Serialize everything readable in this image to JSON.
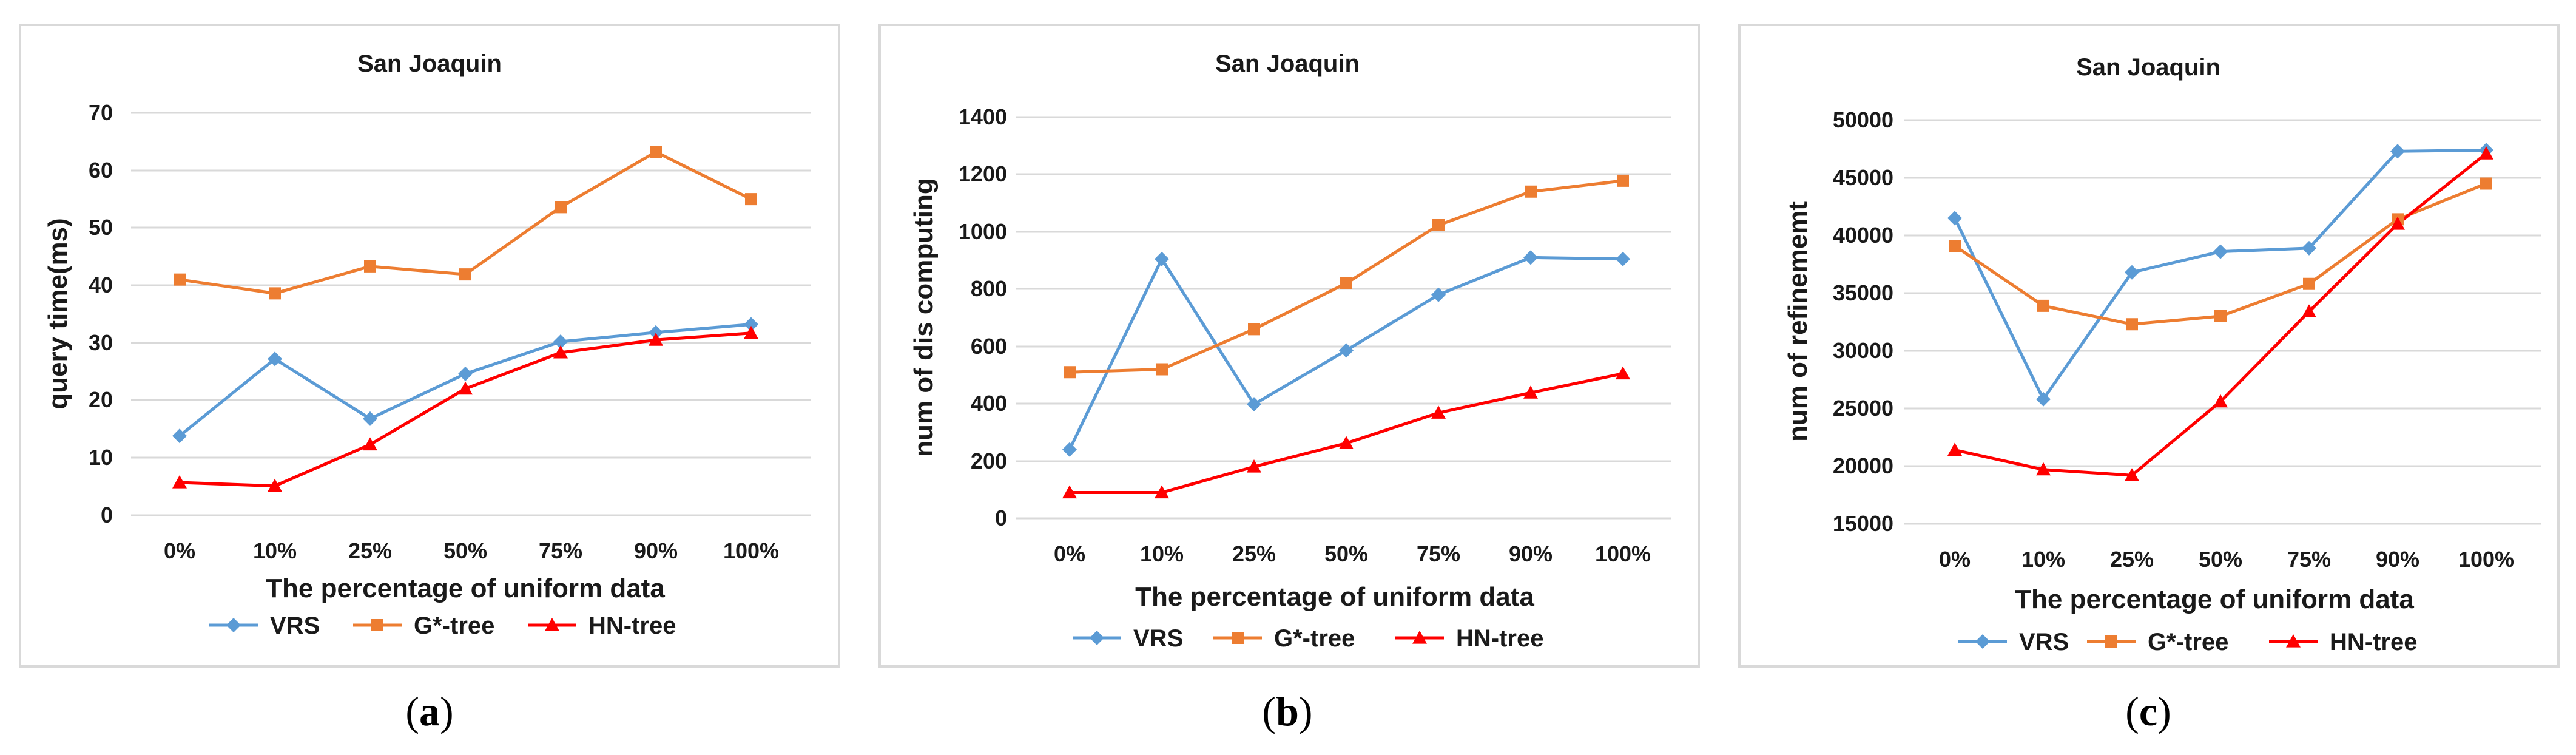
{
  "colors": {
    "VRS": "#5b9bd5",
    "G*-tree": "#ed7d31",
    "HN-tree": "#ff0000"
  },
  "chart_data": [
    {
      "type": "line",
      "caption_open": "(",
      "caption_letter": "a",
      "caption_close": ")",
      "title": "San Joaquin",
      "xlabel": "The percentage of uniform data",
      "ylabel": "query time(ms)",
      "categories": [
        "0%",
        "10%",
        "25%",
        "50%",
        "75%",
        "90%",
        "100%"
      ],
      "ylim": [
        0,
        70
      ],
      "ytick_step": 10,
      "ytick_labels": [
        "0",
        "10",
        "20",
        "30",
        "40",
        "50",
        "60",
        "70"
      ],
      "series": [
        {
          "name": "VRS",
          "marker": "diamond",
          "values": [
            13.8,
            27.2,
            16.8,
            24.6,
            30.2,
            31.8,
            33.2
          ]
        },
        {
          "name": "G*-tree",
          "marker": "square",
          "values": [
            41.0,
            38.6,
            43.3,
            41.9,
            53.6,
            63.2,
            55.0
          ]
        },
        {
          "name": "HN-tree",
          "marker": "triangle",
          "values": [
            5.7,
            5.1,
            12.3,
            22.0,
            28.3,
            30.5,
            31.7
          ]
        }
      ]
    },
    {
      "type": "line",
      "caption_open": "(",
      "caption_letter": "b",
      "caption_close": ")",
      "title": "San Joaquin",
      "xlabel": "The percentage of uniform data",
      "ylabel": "num of dis computing",
      "categories": [
        "0%",
        "10%",
        "25%",
        "50%",
        "75%",
        "90%",
        "100%"
      ],
      "ylim": [
        0,
        1400
      ],
      "ytick_step": 200,
      "ytick_labels": [
        "0",
        "200",
        "400",
        "600",
        "800",
        "1000",
        "1200",
        "1400"
      ],
      "series": [
        {
          "name": "VRS",
          "marker": "diamond",
          "values": [
            240,
            905,
            398,
            586,
            780,
            910,
            905
          ]
        },
        {
          "name": "G*-tree",
          "marker": "square",
          "values": [
            510,
            520,
            660,
            820,
            1023,
            1140,
            1178
          ]
        },
        {
          "name": "HN-tree",
          "marker": "triangle",
          "values": [
            90,
            90,
            180,
            262,
            368,
            438,
            505
          ]
        }
      ]
    },
    {
      "type": "line",
      "caption_open": "(",
      "caption_letter": "c",
      "caption_close": ")",
      "title": "San Joaquin",
      "xlabel": "The percentage of uniform data",
      "ylabel": "num of refinememt",
      "categories": [
        "0%",
        "10%",
        "25%",
        "50%",
        "75%",
        "90%",
        "100%"
      ],
      "ylim": [
        15000,
        50000
      ],
      "ytick_step": 5000,
      "ytick_labels": [
        "15000",
        "20000",
        "25000",
        "30000",
        "35000",
        "40000",
        "45000",
        "50000"
      ],
      "series": [
        {
          "name": "VRS",
          "marker": "diamond",
          "values": [
            41500,
            25800,
            36800,
            38600,
            38900,
            47300,
            47400
          ]
        },
        {
          "name": "G*-tree",
          "marker": "square",
          "values": [
            39100,
            33900,
            32300,
            33000,
            35800,
            41400,
            44500
          ]
        },
        {
          "name": "HN-tree",
          "marker": "triangle",
          "values": [
            21400,
            19700,
            19200,
            25600,
            33400,
            41000,
            47100
          ]
        }
      ]
    }
  ]
}
